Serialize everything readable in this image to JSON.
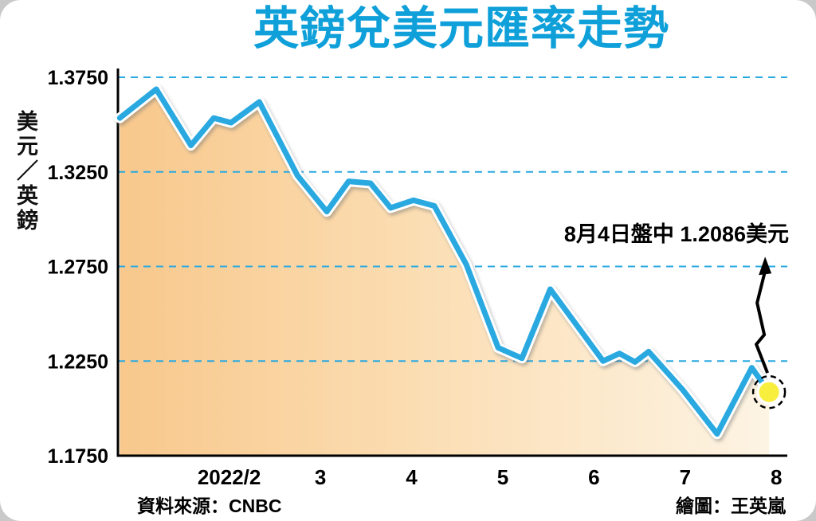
{
  "title": "英鎊兌美元匯率走勢",
  "y_axis_label": "美元／英鎊",
  "source": {
    "label": "資料來源：",
    "value": "CNBC"
  },
  "credit": "繪圖：王英嵐",
  "colors": {
    "title": "#0fa0da",
    "line": "#2aa9e1",
    "grid": "#2aa9e1",
    "axis": "#000000",
    "area_left": "#f8c88c",
    "area_mid": "#fbddb2",
    "area_right": "#fdf4e4",
    "marker_fill": "#f8ee3e"
  },
  "chart_data": {
    "type": "area",
    "title": "英鎊兌美元匯率走勢",
    "ylabel": "美元／英鎊",
    "xlabel": "",
    "legend": "none",
    "grid": "dashed-horizontal",
    "xlim": [
      0.78,
      8.12
    ],
    "ylim": [
      1.175,
      1.375
    ],
    "y_ticks": [
      {
        "v": 1.375,
        "label": "1.3750"
      },
      {
        "v": 1.325,
        "label": "1.3250"
      },
      {
        "v": 1.275,
        "label": "1.2750"
      },
      {
        "v": 1.225,
        "label": "1.2250"
      },
      {
        "v": 1.175,
        "label": "1.1750"
      }
    ],
    "x_ticks": [
      {
        "v": 2,
        "label": "2022/2"
      },
      {
        "v": 3,
        "label": "3"
      },
      {
        "v": 4,
        "label": "4"
      },
      {
        "v": 5,
        "label": "5"
      },
      {
        "v": 6,
        "label": "6"
      },
      {
        "v": 7,
        "label": "7"
      },
      {
        "v": 8,
        "label": "8"
      }
    ],
    "points": [
      [
        0.8,
        1.3535
      ],
      [
        1.2,
        1.3687
      ],
      [
        1.58,
        1.339
      ],
      [
        1.83,
        1.3535
      ],
      [
        2.02,
        1.351
      ],
      [
        2.33,
        1.362
      ],
      [
        2.75,
        1.323
      ],
      [
        3.07,
        1.304
      ],
      [
        3.31,
        1.32
      ],
      [
        3.55,
        1.319
      ],
      [
        3.77,
        1.306
      ],
      [
        4.02,
        1.31
      ],
      [
        4.25,
        1.307
      ],
      [
        4.6,
        1.276
      ],
      [
        4.95,
        1.232
      ],
      [
        5.21,
        1.2265
      ],
      [
        5.52,
        1.263
      ],
      [
        6.1,
        1.225
      ],
      [
        6.28,
        1.229
      ],
      [
        6.45,
        1.2245
      ],
      [
        6.6,
        1.23
      ],
      [
        6.97,
        1.21
      ],
      [
        7.35,
        1.1865
      ],
      [
        7.73,
        1.2215
      ],
      [
        7.92,
        1.2086
      ]
    ],
    "highlight_point": [
      7.92,
      1.2086
    ],
    "annotation": "8月4日盤中 1.2086美元"
  }
}
